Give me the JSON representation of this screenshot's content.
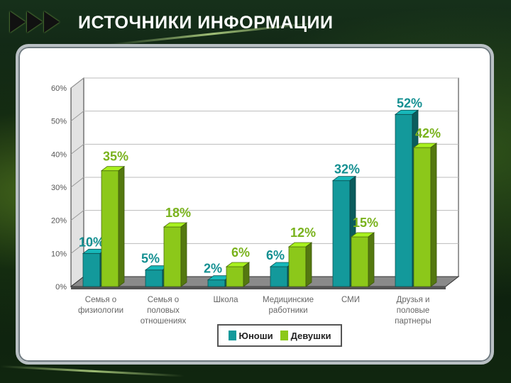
{
  "header": {
    "title": "ИСТОЧНИКИ ИНФОРМАЦИИ"
  },
  "colors": {
    "series1": "#13999b",
    "series2": "#8cc81a",
    "label1": "#138f91",
    "label2": "#79b21c"
  },
  "chart_data": {
    "type": "bar",
    "categories": [
      [
        "Семья о",
        "физиологии"
      ],
      [
        "Семья о",
        "половых",
        "отношениях"
      ],
      [
        "Школа"
      ],
      [
        "Медицинские",
        "работники"
      ],
      [
        "СМИ"
      ],
      [
        "Друзья и",
        "половые",
        "партнеры"
      ]
    ],
    "series": [
      {
        "name": "Юноши",
        "values": [
          10,
          5,
          2,
          6,
          32,
          52
        ],
        "labels": [
          "10%",
          "5%",
          "2%",
          "6%",
          "32%",
          "52%"
        ]
      },
      {
        "name": "Девушки",
        "values": [
          35,
          18,
          6,
          12,
          15,
          42
        ],
        "labels": [
          "35%",
          "18%",
          "6%",
          "12%",
          "15%",
          "42%"
        ]
      }
    ],
    "yticks": [
      "0%",
      "10%",
      "20%",
      "30%",
      "40%",
      "50%",
      "60%"
    ],
    "ylim": [
      0,
      60
    ],
    "title": "ИСТОЧНИКИ ИНФОРМАЦИИ",
    "legend_position": "bottom"
  }
}
